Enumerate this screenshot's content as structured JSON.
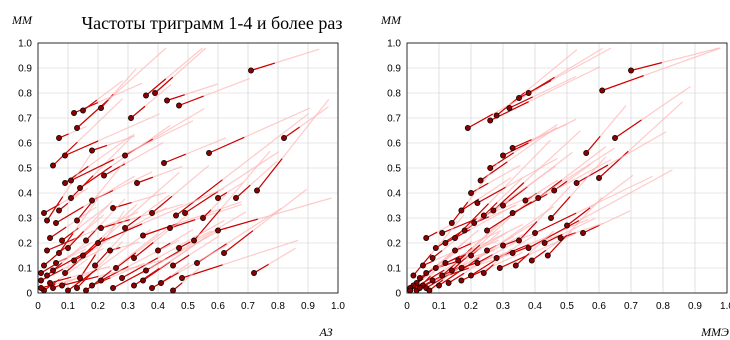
{
  "title": "Частоты триграмм 1-4 и более раз",
  "colors": {
    "trail_faint": "#ffb3b3",
    "trail_strong": "#cc0000",
    "point_fill": "#8b0000",
    "point_stroke": "#000000",
    "grid": "#cfcfcf"
  },
  "chart_data": [
    {
      "type": "scatter",
      "panel": "left",
      "xlabel": "АЗ",
      "ylabel": "ММ",
      "xlim": [
        0,
        1.0
      ],
      "ylim": [
        0,
        1.0
      ],
      "xticks": [
        "0",
        "0.1",
        "0.2",
        "0.3",
        "0.4",
        "0.5",
        "0.6",
        "0.7",
        "0.8",
        "0.9",
        "1.0"
      ],
      "yticks": [
        "0",
        "0.1",
        "0.2",
        "0.3",
        "0.4",
        "0.5",
        "0.6",
        "0.7",
        "0.8",
        "0.9",
        "1.0"
      ],
      "grid": true,
      "series": [
        {
          "points": [
            [
              0.71,
              0.89
            ],
            [
              0.82,
              0.62
            ],
            [
              0.72,
              0.08
            ],
            [
              0.39,
              0.8
            ],
            [
              0.36,
              0.79
            ],
            [
              0.43,
              0.77
            ],
            [
              0.47,
              0.75
            ],
            [
              0.31,
              0.7
            ],
            [
              0.21,
              0.74
            ],
            [
              0.15,
              0.73
            ],
            [
              0.12,
              0.72
            ],
            [
              0.57,
              0.56
            ],
            [
              0.42,
              0.52
            ],
            [
              0.29,
              0.55
            ],
            [
              0.18,
              0.57
            ],
            [
              0.09,
              0.55
            ],
            [
              0.05,
              0.51
            ],
            [
              0.22,
              0.47
            ],
            [
              0.33,
              0.44
            ],
            [
              0.09,
              0.44
            ],
            [
              0.14,
              0.42
            ],
            [
              0.11,
              0.38
            ],
            [
              0.18,
              0.37
            ],
            [
              0.25,
              0.34
            ],
            [
              0.38,
              0.32
            ],
            [
              0.46,
              0.31
            ],
            [
              0.49,
              0.32
            ],
            [
              0.6,
              0.38
            ],
            [
              0.66,
              0.38
            ],
            [
              0.73,
              0.41
            ],
            [
              0.07,
              0.33
            ],
            [
              0.03,
              0.29
            ],
            [
              0.06,
              0.28
            ],
            [
              0.13,
              0.29
            ],
            [
              0.21,
              0.26
            ],
            [
              0.29,
              0.26
            ],
            [
              0.35,
              0.23
            ],
            [
              0.44,
              0.26
            ],
            [
              0.55,
              0.3
            ],
            [
              0.6,
              0.25
            ],
            [
              0.04,
              0.22
            ],
            [
              0.08,
              0.21
            ],
            [
              0.16,
              0.21
            ],
            [
              0.24,
              0.17
            ],
            [
              0.32,
              0.14
            ],
            [
              0.4,
              0.17
            ],
            [
              0.47,
              0.18
            ],
            [
              0.52,
              0.21
            ],
            [
              0.03,
              0.17
            ],
            [
              0.07,
              0.16
            ],
            [
              0.12,
              0.13
            ],
            [
              0.19,
              0.11
            ],
            [
              0.26,
              0.1
            ],
            [
              0.36,
              0.09
            ],
            [
              0.45,
              0.11
            ],
            [
              0.53,
              0.12
            ],
            [
              0.62,
              0.16
            ],
            [
              0.02,
              0.11
            ],
            [
              0.05,
              0.09
            ],
            [
              0.09,
              0.08
            ],
            [
              0.14,
              0.06
            ],
            [
              0.21,
              0.05
            ],
            [
              0.28,
              0.06
            ],
            [
              0.35,
              0.05
            ],
            [
              0.41,
              0.04
            ],
            [
              0.48,
              0.06
            ],
            [
              0.01,
              0.05
            ],
            [
              0.04,
              0.04
            ],
            [
              0.08,
              0.03
            ],
            [
              0.13,
              0.02
            ],
            [
              0.18,
              0.03
            ],
            [
              0.25,
              0.02
            ],
            [
              0.32,
              0.03
            ],
            [
              0.38,
              0.02
            ],
            [
              0.45,
              0.01
            ],
            [
              0.02,
              0.01
            ],
            [
              0.05,
              0.02
            ],
            [
              0.1,
              0.01
            ],
            [
              0.16,
              0.01
            ],
            [
              0.01,
              0.02
            ],
            [
              0.03,
              0.07
            ],
            [
              0.06,
              0.12
            ],
            [
              0.1,
              0.18
            ],
            [
              0.15,
              0.15
            ],
            [
              0.2,
              0.2
            ],
            [
              0.11,
              0.45
            ],
            [
              0.07,
              0.62
            ],
            [
              0.13,
              0.66
            ],
            [
              0.02,
              0.32
            ],
            [
              0.01,
              0.08
            ]
          ]
        }
      ]
    },
    {
      "type": "scatter",
      "panel": "right",
      "xlabel": "ММЭ",
      "ylabel": "ММ",
      "xlim": [
        0,
        1.0
      ],
      "ylim": [
        0,
        1.0
      ],
      "xticks": [
        "0",
        "0.1",
        "0.2",
        "0.3",
        "0.4",
        "0.5",
        "0.6",
        "0.7",
        "0.8",
        "0.9",
        "1.0"
      ],
      "yticks": [
        "0",
        "0.1",
        "0.2",
        "0.3",
        "0.4",
        "0.5",
        "0.6",
        "0.7",
        "0.8",
        "0.9",
        "1.0"
      ],
      "grid": true,
      "series": [
        {
          "points": [
            [
              0.7,
              0.89
            ],
            [
              0.61,
              0.81
            ],
            [
              0.38,
              0.8
            ],
            [
              0.35,
              0.78
            ],
            [
              0.32,
              0.74
            ],
            [
              0.28,
              0.71
            ],
            [
              0.26,
              0.69
            ],
            [
              0.19,
              0.66
            ],
            [
              0.65,
              0.62
            ],
            [
              0.56,
              0.56
            ],
            [
              0.6,
              0.46
            ],
            [
              0.53,
              0.44
            ],
            [
              0.46,
              0.41
            ],
            [
              0.41,
              0.38
            ],
            [
              0.37,
              0.37
            ],
            [
              0.33,
              0.32
            ],
            [
              0.3,
              0.35
            ],
            [
              0.27,
              0.33
            ],
            [
              0.24,
              0.31
            ],
            [
              0.21,
              0.28
            ],
            [
              0.18,
              0.25
            ],
            [
              0.15,
              0.22
            ],
            [
              0.12,
              0.2
            ],
            [
              0.09,
              0.18
            ],
            [
              0.06,
              0.22
            ],
            [
              0.45,
              0.3
            ],
            [
              0.5,
              0.27
            ],
            [
              0.55,
              0.24
            ],
            [
              0.4,
              0.24
            ],
            [
              0.35,
              0.21
            ],
            [
              0.3,
              0.19
            ],
            [
              0.25,
              0.17
            ],
            [
              0.2,
              0.15
            ],
            [
              0.16,
              0.13
            ],
            [
              0.12,
              0.12
            ],
            [
              0.09,
              0.1
            ],
            [
              0.06,
              0.08
            ],
            [
              0.04,
              0.06
            ],
            [
              0.03,
              0.04
            ],
            [
              0.02,
              0.03
            ],
            [
              0.01,
              0.02
            ],
            [
              0.05,
              0.03
            ],
            [
              0.08,
              0.05
            ],
            [
              0.11,
              0.07
            ],
            [
              0.14,
              0.09
            ],
            [
              0.17,
              0.1
            ],
            [
              0.22,
              0.12
            ],
            [
              0.28,
              0.14
            ],
            [
              0.33,
              0.16
            ],
            [
              0.38,
              0.18
            ],
            [
              0.43,
              0.2
            ],
            [
              0.48,
              0.22
            ],
            [
              0.03,
              0.01
            ],
            [
              0.06,
              0.02
            ],
            [
              0.1,
              0.03
            ],
            [
              0.13,
              0.04
            ],
            [
              0.17,
              0.05
            ],
            [
              0.2,
              0.07
            ],
            [
              0.24,
              0.08
            ],
            [
              0.29,
              0.1
            ],
            [
              0.34,
              0.11
            ],
            [
              0.39,
              0.13
            ],
            [
              0.44,
              0.15
            ],
            [
              0.2,
              0.4
            ],
            [
              0.23,
              0.45
            ],
            [
              0.26,
              0.5
            ],
            [
              0.3,
              0.55
            ],
            [
              0.33,
              0.58
            ],
            [
              0.22,
              0.36
            ],
            [
              0.17,
              0.33
            ],
            [
              0.14,
              0.28
            ],
            [
              0.11,
              0.24
            ],
            [
              0.08,
              0.14
            ],
            [
              0.05,
              0.11
            ],
            [
              0.02,
              0.07
            ],
            [
              0.01,
              0.01
            ],
            [
              0.04,
              0.02
            ],
            [
              0.07,
              0.01
            ],
            [
              0.15,
              0.17
            ],
            [
              0.25,
              0.25
            ]
          ]
        }
      ]
    }
  ]
}
